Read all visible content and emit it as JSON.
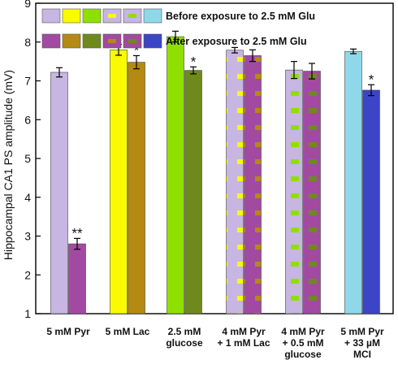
{
  "chart_data": {
    "type": "bar",
    "ylabel": "Hippocampal CA1 PS amplitude (mV)",
    "ylim": [
      1,
      9
    ],
    "yticks": [
      1,
      2,
      3,
      4,
      5,
      6,
      7,
      8,
      9
    ],
    "grid": false,
    "legend_position": "top",
    "legend": {
      "before_label": "Before exposure to 2.5 mM Glu",
      "after_label": "After exposure to 2.5 mM Glu"
    },
    "categories": [
      [
        "5 mM Pyr"
      ],
      [
        "5 mM Lac"
      ],
      [
        "2.5 mM",
        "glucose"
      ],
      [
        "4 mM Pyr",
        "+ 1 mM Lac"
      ],
      [
        "4 mM Pyr",
        "+ 0.5 mM",
        "glucose"
      ],
      [
        "5 mM Pyr",
        "+ 33 µM",
        "MCI"
      ]
    ],
    "series": [
      {
        "name": "Before exposure to 2.5 mM Glu",
        "values": [
          7.22,
          7.8,
          8.14,
          7.79,
          7.28,
          7.76
        ],
        "errors": [
          0.12,
          0.14,
          0.14,
          0.07,
          0.22,
          0.06
        ],
        "colors": [
          "#c7b5e2",
          "#fafa00",
          "#8fe000",
          "#c7b5e2",
          "#c7b5e2",
          "#8fd8ea"
        ],
        "stripe_colors": [
          null,
          null,
          null,
          "#fafa00",
          "#8fe000",
          null
        ]
      },
      {
        "name": "After exposure to 2.5 mM Glu",
        "values": [
          2.8,
          7.48,
          7.27,
          7.65,
          7.25,
          6.76
        ],
        "errors": [
          0.14,
          0.17,
          0.09,
          0.15,
          0.2,
          0.14
        ],
        "colors": [
          "#a24aa2",
          "#b48a12",
          "#6e8a1c",
          "#a24aa2",
          "#a24aa2",
          "#3c44c8"
        ],
        "stripe_colors": [
          null,
          null,
          null,
          "#b48a12",
          "#6e8a1c",
          null
        ]
      }
    ],
    "annotations": [
      {
        "category_index": 0,
        "series_index": 1,
        "text": "**"
      },
      {
        "category_index": 1,
        "series_index": 1,
        "text": "*"
      },
      {
        "category_index": 2,
        "series_index": 1,
        "text": "*"
      },
      {
        "category_index": 5,
        "series_index": 1,
        "text": "*"
      }
    ]
  }
}
